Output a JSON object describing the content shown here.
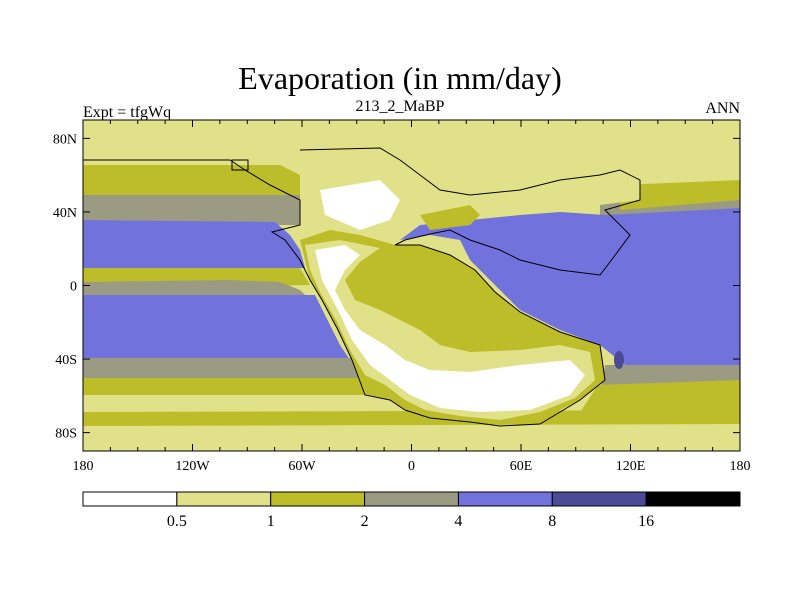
{
  "figure": {
    "title": "Evaporation (in mm/day)",
    "left_label": "Expt = tfgWq",
    "center_label": "213_2_MaBP",
    "right_label": "ANN"
  },
  "chart_data": {
    "type": "heatmap",
    "title": "Evaporation (in mm/day)",
    "variable": "Evaporation",
    "units": "mm/day",
    "lon_ticks": [
      "180",
      "120W",
      "60W",
      "0",
      "60E",
      "120E",
      "180"
    ],
    "lat_ticks": [
      "80N",
      "40N",
      "0",
      "40S",
      "80S"
    ],
    "lon_range": [
      -180,
      180
    ],
    "lat_range": [
      -90,
      90
    ],
    "colorbar": {
      "levels": [
        "0.5",
        "1",
        "2",
        "4",
        "8",
        "16"
      ],
      "colors": [
        "#ffffff",
        "#e1e18a",
        "#bdbd2a",
        "#9b9b84",
        "#7272dd",
        "#4a4a96",
        "#000000"
      ]
    }
  }
}
